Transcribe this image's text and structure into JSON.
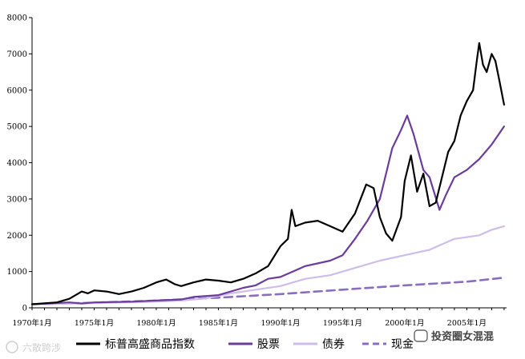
{
  "chart_data": {
    "type": "line",
    "title": "",
    "xlabel": "",
    "ylabel": "",
    "ylim": [
      0,
      8000
    ],
    "yticks": [
      0,
      1000,
      2000,
      3000,
      4000,
      5000,
      6000,
      7000,
      8000
    ],
    "xlim": [
      1970.0,
      2008.2
    ],
    "xtick_labels": [
      "1970年1月",
      "1975年1月",
      "1980年1月",
      "1985年1月",
      "1990年1月",
      "1995年1月",
      "2000年1月",
      "2005年1月"
    ],
    "xtick_values": [
      1970,
      1975,
      1980,
      1985,
      1990,
      1995,
      2000,
      2005
    ],
    "legend_position": "bottom",
    "series": [
      {
        "name": "标普高盛商品指数",
        "color": "#000000",
        "dash": "solid",
        "x": [
          1970,
          1972,
          1973,
          1974,
          1974.5,
          1975,
          1976,
          1977,
          1978,
          1979,
          1980,
          1980.8,
          1981.5,
          1982,
          1983,
          1984,
          1985,
          1986,
          1987,
          1988,
          1989,
          1990,
          1990.6,
          1990.9,
          1991.2,
          1992,
          1993,
          1994,
          1995,
          1996,
          1996.9,
          1997.5,
          1998,
          1998.5,
          1999,
          1999.7,
          2000,
          2000.5,
          2001,
          2001.5,
          2002,
          2002.5,
          2003,
          2003.5,
          2004,
          2004.5,
          2005,
          2005.5,
          2005.8,
          2006,
          2006.3,
          2006.6,
          2007,
          2007.3,
          2007.6,
          2008
        ],
        "y": [
          100,
          150,
          250,
          450,
          400,
          480,
          450,
          380,
          450,
          550,
          700,
          780,
          650,
          600,
          700,
          780,
          750,
          700,
          800,
          950,
          1150,
          1700,
          1900,
          2700,
          2250,
          2350,
          2400,
          2250,
          2100,
          2600,
          3400,
          3300,
          2500,
          2050,
          1850,
          2500,
          3500,
          4200,
          3200,
          3700,
          2800,
          2900,
          3600,
          4300,
          4600,
          5300,
          5700,
          6000,
          6800,
          7300,
          6700,
          6500,
          7000,
          6800,
          6300,
          5600
        ]
      },
      {
        "name": "股票",
        "color": "#6a3d9a",
        "dash": "solid",
        "x": [
          1970,
          1973,
          1974,
          1975,
          1978,
          1980,
          1982,
          1983,
          1985,
          1987,
          1988,
          1989,
          1990,
          1991,
          1992,
          1994,
          1995,
          1996,
          1997,
          1998,
          1998.5,
          1999,
          1999.7,
          2000.2,
          2000.7,
          2001.5,
          2002,
          2002.8,
          2003.3,
          2004,
          2005,
          2006,
          2007,
          2008
        ],
        "y": [
          100,
          150,
          120,
          150,
          170,
          200,
          230,
          300,
          350,
          550,
          620,
          800,
          850,
          1000,
          1150,
          1300,
          1450,
          1900,
          2400,
          3000,
          3700,
          4400,
          4900,
          5300,
          4800,
          3800,
          3600,
          2700,
          3100,
          3600,
          3800,
          4100,
          4500,
          5000
        ]
      },
      {
        "name": "债券",
        "color": "#cdbde8",
        "dash": "solid",
        "x": [
          1970,
          1975,
          1980,
          1982,
          1984,
          1986,
          1988,
          1990,
          1992,
          1994,
          1996,
          1998,
          2000,
          2002,
          2004,
          2006,
          2007,
          2008
        ],
        "y": [
          100,
          130,
          170,
          200,
          260,
          400,
          500,
          600,
          800,
          900,
          1100,
          1300,
          1450,
          1600,
          1900,
          2000,
          2150,
          2250
        ]
      },
      {
        "name": "现金",
        "color": "#8a6dbf",
        "dash": "dashed",
        "x": [
          1970,
          1975,
          1980,
          1985,
          1990,
          1995,
          2000,
          2005,
          2008
        ],
        "y": [
          100,
          140,
          200,
          280,
          380,
          500,
          620,
          720,
          830
        ]
      }
    ]
  },
  "watermarks": {
    "bottom_left": "六散跨涉",
    "bottom_right": "投资圈女混混"
  }
}
